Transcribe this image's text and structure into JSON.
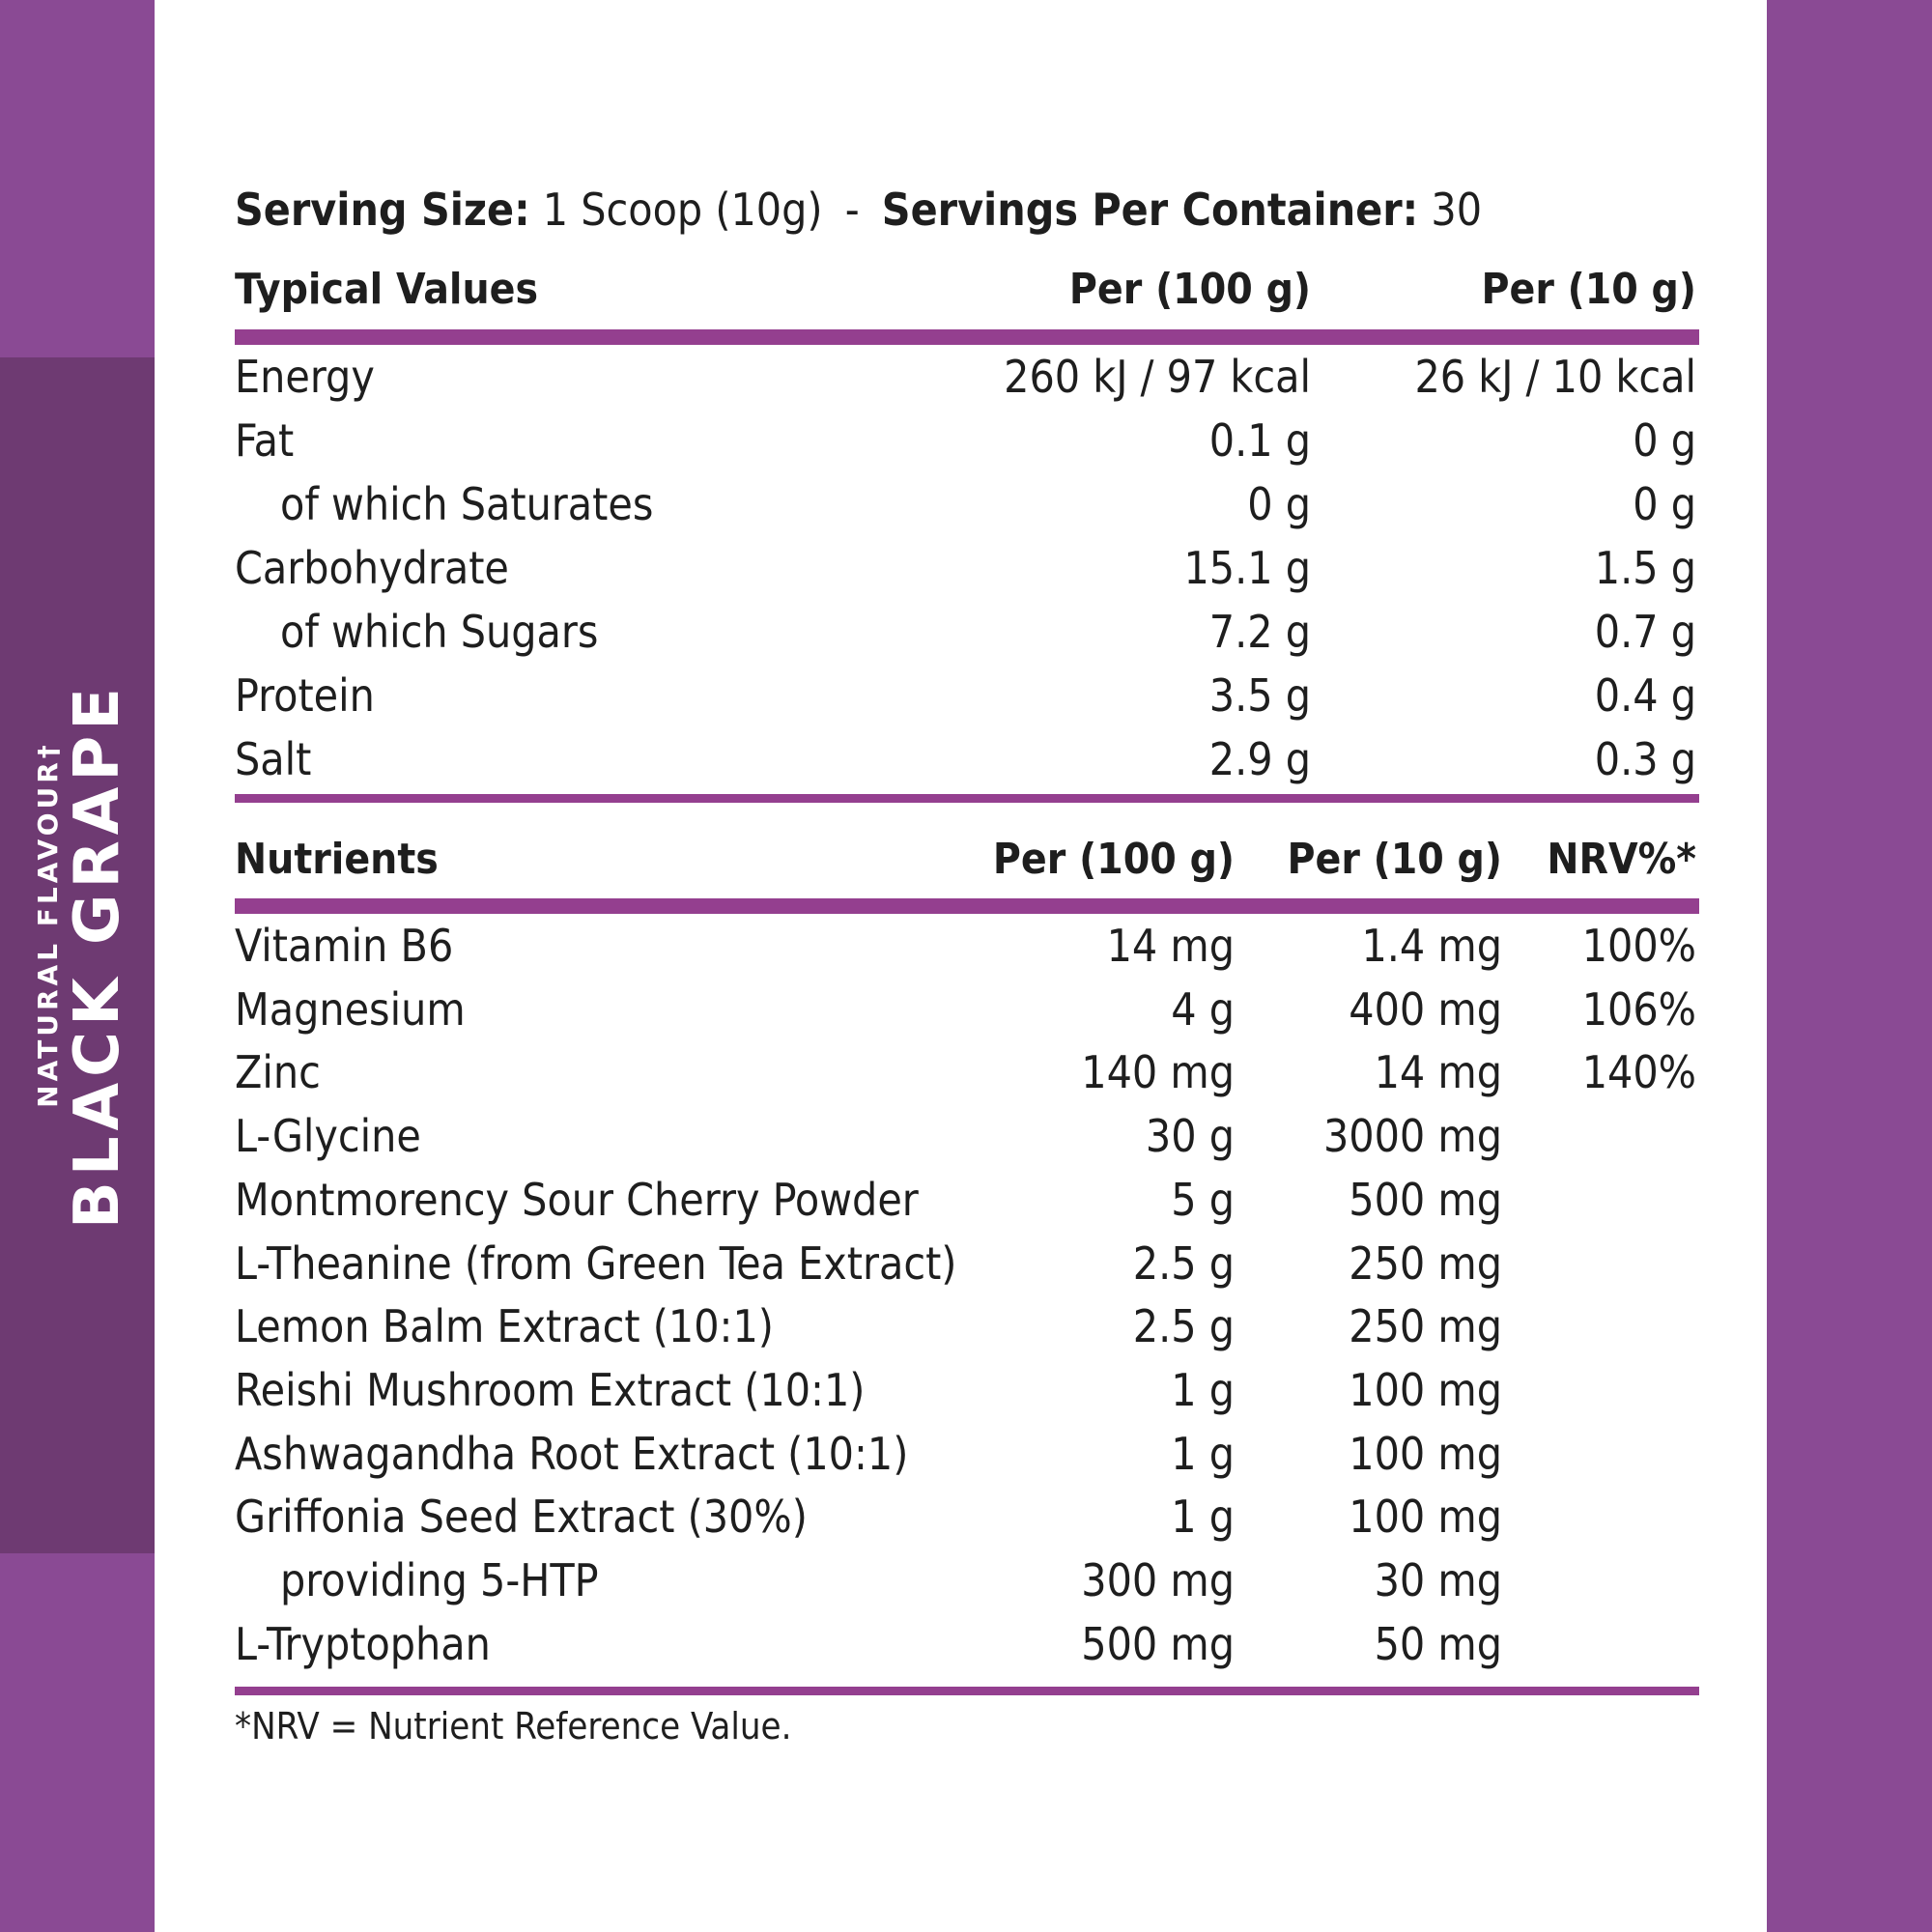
{
  "colors": {
    "strip": "#8a4a94",
    "strip_panel": "#6e3a72",
    "rule": "#943f8f",
    "text": "#1e1e1e"
  },
  "flavour": {
    "name": "BLACK GRAPE",
    "subtitle": "NATURAL FLAVOUR†"
  },
  "serving": {
    "size_label": "Serving Size:",
    "size_value": "1 Scoop (10g)",
    "separator": "-",
    "per_container_label": "Servings Per Container:",
    "per_container_value": "30"
  },
  "typical_values": {
    "headers": [
      "Typical Values",
      "Per (100 g)",
      "Per (10 g)"
    ],
    "rows": [
      {
        "name": "Energy",
        "per100": "260 kJ / 97 kcal",
        "per10": "26 kJ / 10 kcal",
        "indent": false
      },
      {
        "name": "Fat",
        "per100": "0.1 g",
        "per10": "0 g",
        "indent": false
      },
      {
        "name": "of which Saturates",
        "per100": "0 g",
        "per10": "0 g",
        "indent": true
      },
      {
        "name": "Carbohydrate",
        "per100": "15.1 g",
        "per10": "1.5 g",
        "indent": false
      },
      {
        "name": "of which Sugars",
        "per100": "7.2 g",
        "per10": "0.7 g",
        "indent": true
      },
      {
        "name": "Protein",
        "per100": "3.5 g",
        "per10": "0.4 g",
        "indent": false
      },
      {
        "name": "Salt",
        "per100": "2.9 g",
        "per10": "0.3 g",
        "indent": false
      }
    ]
  },
  "nutrients": {
    "headers": [
      "Nutrients",
      "Per (100 g)",
      "Per (10 g)",
      "NRV%*"
    ],
    "rows": [
      {
        "name": "Vitamin B6",
        "per100": "14 mg",
        "per10": "1.4 mg",
        "nrv": "100%"
      },
      {
        "name": "Magnesium",
        "per100": "4 g",
        "per10": "400 mg",
        "nrv": "106%"
      },
      {
        "name": "Zinc",
        "per100": "140 mg",
        "per10": "14 mg",
        "nrv": "140%"
      },
      {
        "name": "L-Glycine",
        "per100": "30 g",
        "per10": "3000 mg",
        "nrv": ""
      },
      {
        "name": "Montmorency Sour Cherry Powder",
        "per100": "5 g",
        "per10": "500 mg",
        "nrv": ""
      },
      {
        "name": "L-Theanine (from Green Tea Extract)",
        "per100": "2.5 g",
        "per10": "250 mg",
        "nrv": ""
      },
      {
        "name": "Lemon Balm Extract (10:1)",
        "per100": "2.5 g",
        "per10": "250 mg",
        "nrv": ""
      },
      {
        "name": "Reishi Mushroom Extract (10:1)",
        "per100": "1 g",
        "per10": "100 mg",
        "nrv": ""
      },
      {
        "name": "Ashwagandha Root Extract (10:1)",
        "per100": "1 g",
        "per10": "100 mg",
        "nrv": ""
      },
      {
        "name": "Griffonia Seed Extract (30%)",
        "per100": "1 g",
        "per10": "100 mg",
        "nrv": ""
      },
      {
        "name": "providing 5-HTP",
        "per100": "300 mg",
        "per10": "30 mg",
        "nrv": "",
        "indent": true
      },
      {
        "name": "L-Tryptophan",
        "per100": "500 mg",
        "per10": "50 mg",
        "nrv": ""
      }
    ]
  },
  "footnote": "*NRV = Nutrient Reference Value."
}
